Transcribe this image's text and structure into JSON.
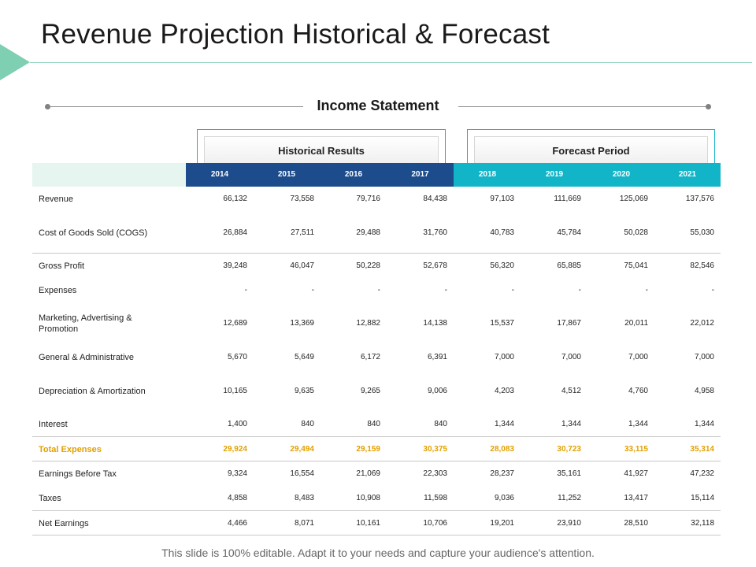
{
  "slide": {
    "title": "Revenue Projection Historical & Forecast",
    "section_title": "Income Statement",
    "footer": "This slide is 100% editable. Adapt it to your needs and capture your audience's attention."
  },
  "groups": {
    "historical": "Historical Results",
    "forecast": "Forecast Period"
  },
  "years": [
    "2014",
    "2015",
    "2016",
    "2017",
    "2018",
    "2019",
    "2020",
    "2021"
  ],
  "rows": [
    {
      "label": "Revenue",
      "values": [
        "66,132",
        "73,558",
        "79,716",
        "84,438",
        "97,103",
        "111,669",
        "125,069",
        "137,576"
      ]
    },
    {
      "label": "Cost of Goods Sold (COGS)",
      "values": [
        "26,884",
        "27,511",
        "29,488",
        "31,760",
        "40,783",
        "45,784",
        "50,028",
        "55,030"
      ]
    },
    {
      "label": "Gross Profit",
      "values": [
        "39,248",
        "46,047",
        "50,228",
        "52,678",
        "56,320",
        "65,885",
        "75,041",
        "82,546"
      ]
    },
    {
      "label": "Expenses",
      "values": [
        "-",
        "-",
        "-",
        "-",
        "-",
        "-",
        "-",
        "-"
      ]
    },
    {
      "label": "Marketing, Advertising & Promotion",
      "values": [
        "12,689",
        "13,369",
        "12,882",
        "14,138",
        "15,537",
        "17,867",
        "20,011",
        "22,012"
      ]
    },
    {
      "label": "General & Administrative",
      "values": [
        "5,670",
        "5,649",
        "6,172",
        "6,391",
        "7,000",
        "7,000",
        "7,000",
        "7,000"
      ]
    },
    {
      "label": "Depreciation & Amortization",
      "values": [
        "10,165",
        "9,635",
        "9,265",
        "9,006",
        "4,203",
        "4,512",
        "4,760",
        "4,958"
      ]
    },
    {
      "label": "Interest",
      "values": [
        "1,400",
        "840",
        "840",
        "840",
        "1,344",
        "1,344",
        "1,344",
        "1,344"
      ]
    },
    {
      "label": "Total Expenses",
      "values": [
        "29,924",
        "29,494",
        "29,159",
        "30,375",
        "28,083",
        "30,723",
        "33,115",
        "35,314"
      ]
    },
    {
      "label": "Earnings Before Tax",
      "values": [
        "9,324",
        "16,554",
        "21,069",
        "22,303",
        "28,237",
        "35,161",
        "41,927",
        "47,232"
      ]
    },
    {
      "label": "Taxes",
      "values": [
        "4,858",
        "8,483",
        "10,908",
        "11,598",
        "9,036",
        "11,252",
        "13,417",
        "15,114"
      ]
    },
    {
      "label": "Net Earnings",
      "values": [
        "4,466",
        "8,071",
        "10,161",
        "10,706",
        "19,201",
        "23,910",
        "28,510",
        "32,118"
      ]
    }
  ]
}
